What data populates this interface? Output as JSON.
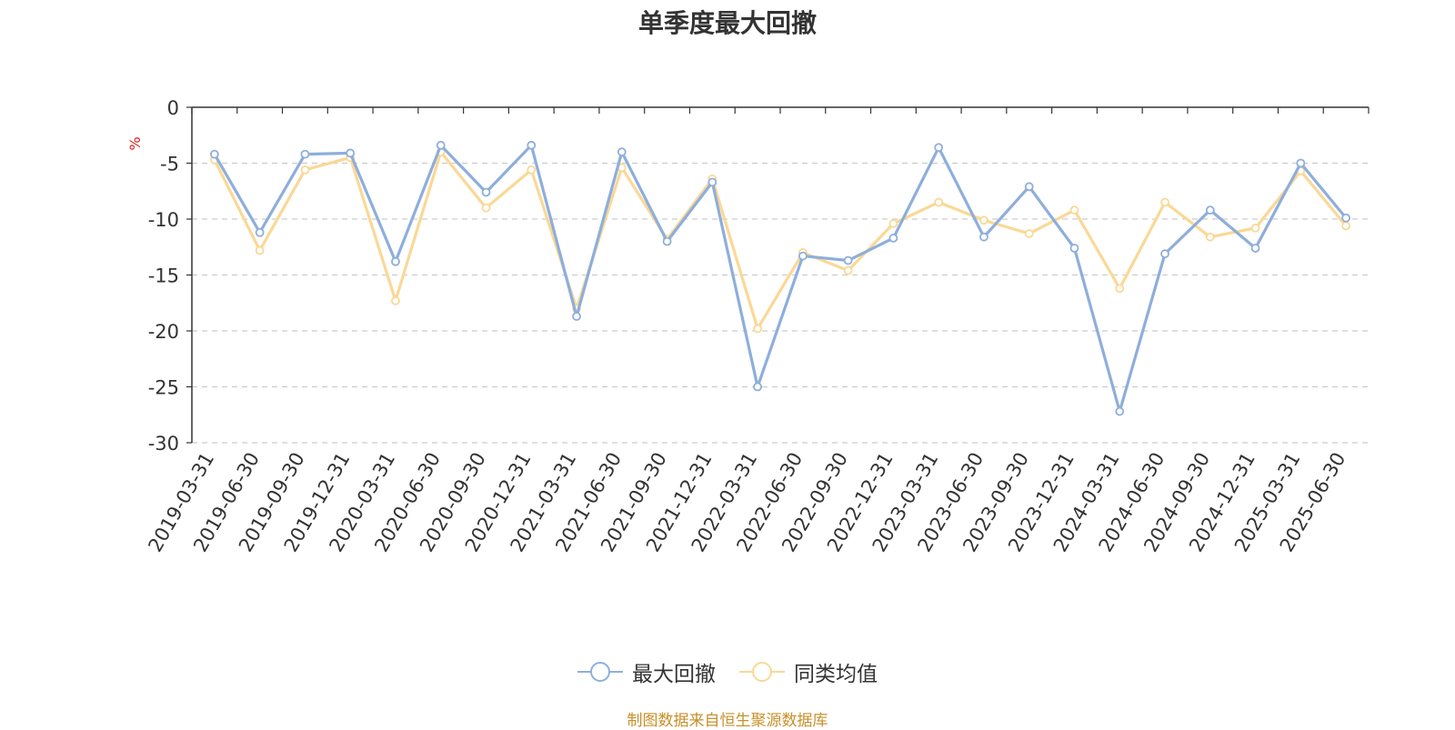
{
  "chart_data": {
    "type": "line",
    "title": "单季度最大回撤",
    "ylabel": "%",
    "ylim": [
      -30,
      0
    ],
    "yticks": [
      0,
      -5,
      -10,
      -15,
      -20,
      -25,
      -30
    ],
    "grid": true,
    "legend_position": "bottom",
    "categories": [
      "2019-03-31",
      "2019-06-30",
      "2019-09-30",
      "2019-12-31",
      "2020-03-31",
      "2020-06-30",
      "2020-09-30",
      "2020-12-31",
      "2021-03-31",
      "2021-06-30",
      "2021-09-30",
      "2021-12-31",
      "2022-03-31",
      "2022-06-30",
      "2022-09-30",
      "2022-12-31",
      "2023-03-31",
      "2023-06-30",
      "2023-09-30",
      "2023-12-31",
      "2024-03-31",
      "2024-06-30",
      "2024-09-30",
      "2024-12-31",
      "2025-03-31",
      "2025-06-30"
    ],
    "series": [
      {
        "name": "最大回撤",
        "color": "#8eaedc",
        "values": [
          -4.2,
          -11.2,
          -4.2,
          -4.1,
          -13.8,
          -3.4,
          -7.6,
          -3.4,
          -18.7,
          -4.0,
          -12.0,
          -6.7,
          -25.0,
          -13.3,
          -13.7,
          -11.7,
          -3.6,
          -11.6,
          -7.1,
          -12.6,
          -27.2,
          -13.1,
          -9.2,
          -12.6,
          -5.0,
          -9.9
        ]
      },
      {
        "name": "同类均值",
        "color": "#fad896",
        "values": [
          -4.7,
          -12.8,
          -5.6,
          -4.5,
          -17.3,
          -4.0,
          -9.0,
          -5.6,
          -18.0,
          -5.4,
          -11.8,
          -6.4,
          -19.8,
          -13.0,
          -14.6,
          -10.4,
          -8.5,
          -10.1,
          -11.3,
          -9.2,
          -16.2,
          -8.5,
          -11.6,
          -10.8,
          -5.7,
          -10.6
        ]
      }
    ]
  },
  "footer": {
    "source": "制图数据来自恒生聚源数据库"
  }
}
